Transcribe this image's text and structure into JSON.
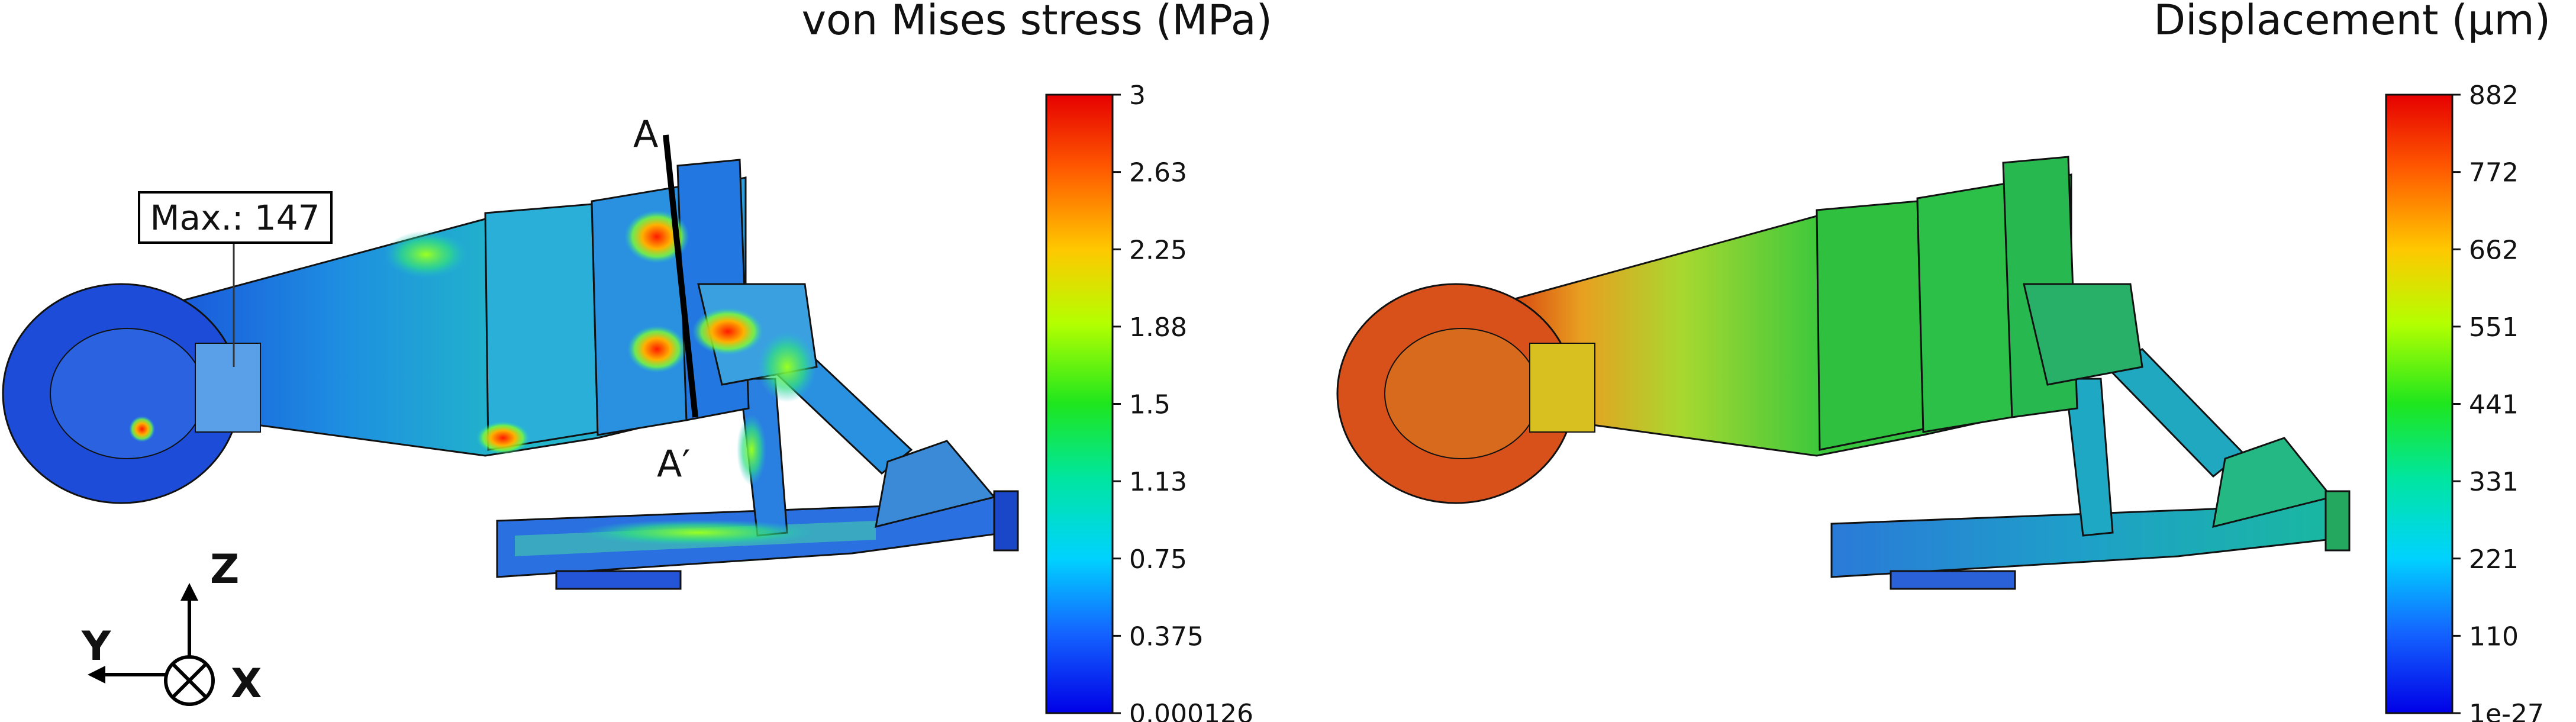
{
  "left_panel": {
    "title": "von Mises stress (MPa)",
    "colorbar_ticks": [
      "3",
      "2.63",
      "2.25",
      "1.88",
      "1.5",
      "1.13",
      "0.75",
      "0.375",
      "0.000126"
    ],
    "max_label": "Max.: 147",
    "section_start": "A",
    "section_end": "A′"
  },
  "right_panel": {
    "title": "Displacement (μm)",
    "colorbar_ticks": [
      "882",
      "772",
      "662",
      "551",
      "441",
      "331",
      "221",
      "110",
      "1e-27"
    ]
  },
  "axes": {
    "z": "Z",
    "y": "Y",
    "x": "X"
  },
  "colormap": [
    "#ff0000",
    "#ff8a00",
    "#ffe600",
    "#6bff00",
    "#00e64d",
    "#00f0d0",
    "#00a0ff",
    "#2020ff",
    "#0000e0"
  ]
}
